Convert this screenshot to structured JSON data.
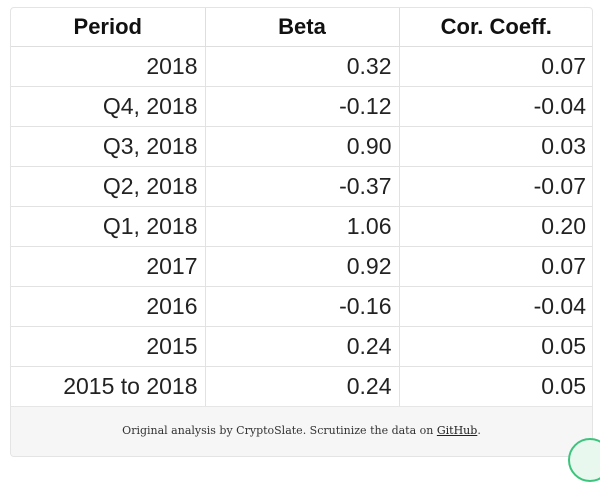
{
  "table": {
    "headers": [
      "Period",
      "Beta",
      "Cor. Coeff."
    ],
    "rows": [
      [
        "2018",
        "0.32",
        "0.07"
      ],
      [
        "Q4, 2018",
        "-0.12",
        "-0.04"
      ],
      [
        "Q3, 2018",
        "0.90",
        "0.03"
      ],
      [
        "Q2, 2018",
        "-0.37",
        "-0.07"
      ],
      [
        "Q1, 2018",
        "1.06",
        "0.20"
      ],
      [
        "2017",
        "0.92",
        "0.07"
      ],
      [
        "2016",
        "-0.16",
        "-0.04"
      ],
      [
        "2015",
        "0.24",
        "0.05"
      ],
      [
        "2015 to 2018",
        "0.24",
        "0.05"
      ]
    ]
  },
  "footer": {
    "text": "Original analysis by CryptoSlate. Scrutinize the data on ",
    "link_label": "GitHub",
    "suffix": "."
  },
  "colors": {
    "badge_accent": "#3cc47c"
  }
}
